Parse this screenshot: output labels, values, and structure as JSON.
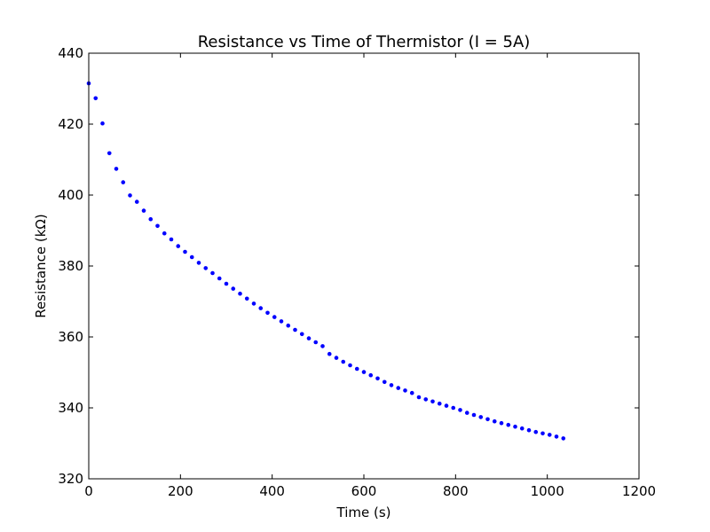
{
  "chart_data": {
    "type": "scatter",
    "title": "Resistance vs Time of Thermistor (I = 5A)",
    "xlabel": "Time (s)",
    "ylabel": "Resistance (kΩ)",
    "xlim": [
      0,
      1200
    ],
    "ylim": [
      320,
      440
    ],
    "xticks": [
      0,
      200,
      400,
      600,
      800,
      1000,
      1200
    ],
    "yticks": [
      320,
      340,
      360,
      380,
      400,
      420,
      440
    ],
    "grid": false,
    "legend": "none",
    "marker_color": "#0000ff",
    "series": [
      {
        "x": [
          0,
          15,
          30,
          45,
          60,
          75,
          90,
          105,
          120,
          135,
          150,
          165,
          180,
          195,
          210,
          225,
          240,
          255,
          270,
          285,
          300,
          315,
          330,
          345,
          360,
          375,
          390,
          405,
          420,
          435,
          450,
          465,
          480,
          495,
          510,
          525,
          540,
          555,
          570,
          585,
          600,
          615,
          630,
          645,
          660,
          675,
          690,
          705,
          720,
          735,
          750,
          765,
          780,
          795,
          810,
          825,
          840,
          855,
          870,
          885,
          900,
          915,
          930,
          945,
          960,
          975,
          990,
          1005,
          1020,
          1035
        ],
        "y": [
          431.5,
          427.3,
          420.2,
          411.8,
          407.4,
          403.6,
          399.9,
          398.1,
          395.6,
          393.2,
          391.3,
          389.2,
          387.5,
          385.6,
          384.0,
          382.5,
          380.9,
          379.4,
          378.0,
          376.5,
          375.0,
          373.6,
          372.2,
          370.8,
          369.4,
          368.1,
          366.8,
          365.6,
          364.4,
          363.2,
          362.0,
          360.8,
          359.6,
          358.5,
          357.4,
          355.2,
          354.1,
          353.0,
          352.0,
          351.0,
          350.1,
          349.2,
          348.3,
          347.3,
          346.4,
          345.6,
          344.9,
          344.2,
          343.0,
          342.4,
          341.8,
          341.2,
          340.6,
          340.0,
          339.4,
          338.6,
          338.0,
          337.4,
          336.8,
          336.2,
          335.7,
          335.2,
          334.7,
          334.2,
          333.7,
          333.2,
          332.8,
          332.4,
          331.9,
          331.4
        ]
      }
    ]
  }
}
